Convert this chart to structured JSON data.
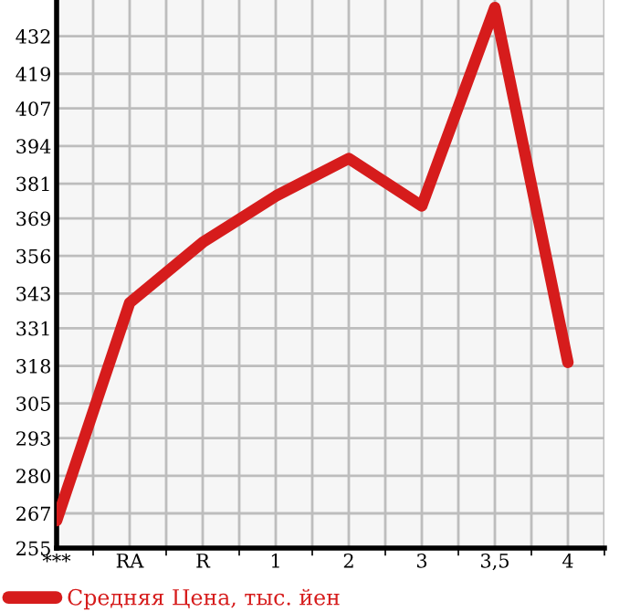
{
  "chart_data": {
    "type": "line",
    "categories": [
      "***",
      "RA",
      "R",
      "1",
      "2",
      "3",
      "3,5",
      "4"
    ],
    "series": [
      {
        "name": "Средняя Цена, тыс. йен",
        "color": "#d61c1c",
        "values": [
          264.5,
          339.8,
          360.7,
          376.7,
          389.7,
          373.3,
          441.9,
          319.2
        ]
      }
    ],
    "ylim": [
      255,
      444.5
    ],
    "yticks": [
      255,
      267,
      280,
      293,
      305,
      318,
      331,
      343,
      356,
      369,
      381,
      394,
      407,
      419,
      432
    ],
    "grid": true,
    "legend": "bottom",
    "marker": "none",
    "line_style": "solid"
  }
}
